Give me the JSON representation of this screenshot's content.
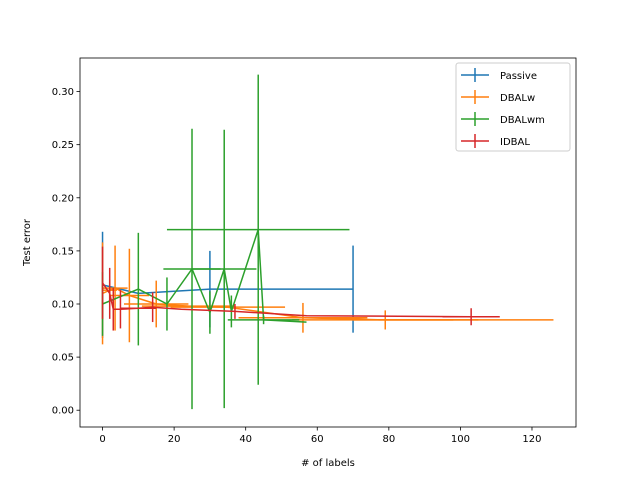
{
  "chart_data": {
    "type": "line",
    "title": "",
    "xlabel": "# of labels",
    "ylabel": "Test error",
    "xlim": [
      -6.3,
      132.3
    ],
    "ylim": [
      -0.0158,
      0.3316
    ],
    "xticks": [
      0,
      20,
      40,
      60,
      80,
      100,
      120
    ],
    "xtick_labels": [
      "0",
      "20",
      "40",
      "60",
      "80",
      "100",
      "120"
    ],
    "yticks": [
      0.0,
      0.05,
      0.1,
      0.15,
      0.2,
      0.25,
      0.3
    ],
    "ytick_labels": [
      "0.00",
      "0.05",
      "0.10",
      "0.15",
      "0.20",
      "0.25",
      "0.30"
    ],
    "grid": false,
    "legend_position": "top-right",
    "error_bars": "x and y",
    "series": [
      {
        "name": "Passive",
        "color": "#1f77b4",
        "points": [
          {
            "x": 0,
            "y": 0.118,
            "xerr": 0,
            "yerr": 0.05
          },
          {
            "x": 10,
            "y": 0.11,
            "xerr": 0,
            "yerr": 0.0
          },
          {
            "x": 30,
            "y": 0.114,
            "xerr": 0,
            "yerr": 0.036
          },
          {
            "x": 70,
            "y": 0.114,
            "xerr": 0,
            "yerr": 0.041
          }
        ]
      },
      {
        "name": "DBALw",
        "color": "#ff7f0e",
        "points": [
          {
            "x": 0,
            "y": 0.11,
            "xerr": 0,
            "yerr": 0.048
          },
          {
            "x": 2,
            "y": 0.113,
            "xerr": 2,
            "yerr": 0.01
          },
          {
            "x": 3.5,
            "y": 0.115,
            "xerr": 3.5,
            "yerr": 0.04
          },
          {
            "x": 7.5,
            "y": 0.108,
            "xerr": 5.5,
            "yerr": 0.044
          },
          {
            "x": 15,
            "y": 0.1,
            "xerr": 9,
            "yerr": 0.022
          },
          {
            "x": 24,
            "y": 0.098,
            "xerr": 13,
            "yerr": 0.0
          },
          {
            "x": 35,
            "y": 0.097,
            "xerr": 16,
            "yerr": 0.0
          },
          {
            "x": 56,
            "y": 0.087,
            "xerr": 18,
            "yerr": 0.014
          },
          {
            "x": 79,
            "y": 0.085,
            "xerr": 26,
            "yerr": 0.009
          },
          {
            "x": 98,
            "y": 0.085,
            "xerr": 28,
            "yerr": 0.0
          }
        ]
      },
      {
        "name": "DBALwm",
        "color": "#2ca02c",
        "points": [
          {
            "x": 0,
            "y": 0.1,
            "xerr": 0,
            "yerr": 0.03
          },
          {
            "x": 10,
            "y": 0.114,
            "xerr": 0,
            "yerr": 0.053
          },
          {
            "x": 18,
            "y": 0.1,
            "xerr": 0,
            "yerr": 0.025
          },
          {
            "x": 25,
            "y": 0.133,
            "xerr": 8,
            "yerr": 0.132
          },
          {
            "x": 30,
            "y": 0.092,
            "xerr": 0,
            "yerr": 0.02
          },
          {
            "x": 34,
            "y": 0.133,
            "xerr": 9,
            "yerr": 0.131
          },
          {
            "x": 36,
            "y": 0.093,
            "xerr": 0,
            "yerr": 0.015
          },
          {
            "x": 43.5,
            "y": 0.17,
            "xerr": 25.5,
            "yerr": 0.146
          },
          {
            "x": 45,
            "y": 0.085,
            "xerr": 10,
            "yerr": 0.004
          },
          {
            "x": 57,
            "y": 0.083,
            "xerr": 0,
            "yerr": 0.0
          }
        ]
      },
      {
        "name": "IDBAL",
        "color": "#d62728",
        "points": [
          {
            "x": 0,
            "y": 0.12,
            "xerr": 0,
            "yerr": 0.034
          },
          {
            "x": 2,
            "y": 0.11,
            "xerr": 0,
            "yerr": 0.024
          },
          {
            "x": 3,
            "y": 0.095,
            "xerr": 0,
            "yerr": 0.02
          },
          {
            "x": 5,
            "y": 0.095,
            "xerr": 0,
            "yerr": 0.018
          },
          {
            "x": 10,
            "y": 0.096,
            "xerr": 5,
            "yerr": 0.0
          },
          {
            "x": 14,
            "y": 0.097,
            "xerr": 0,
            "yerr": 0.014
          },
          {
            "x": 22,
            "y": 0.095,
            "xerr": 0,
            "yerr": 0.0
          },
          {
            "x": 37,
            "y": 0.093,
            "xerr": 0,
            "yerr": 0.007
          },
          {
            "x": 57,
            "y": 0.089,
            "xerr": 0,
            "yerr": 0.0
          },
          {
            "x": 103,
            "y": 0.088,
            "xerr": 8,
            "yerr": 0.008
          }
        ]
      }
    ]
  }
}
